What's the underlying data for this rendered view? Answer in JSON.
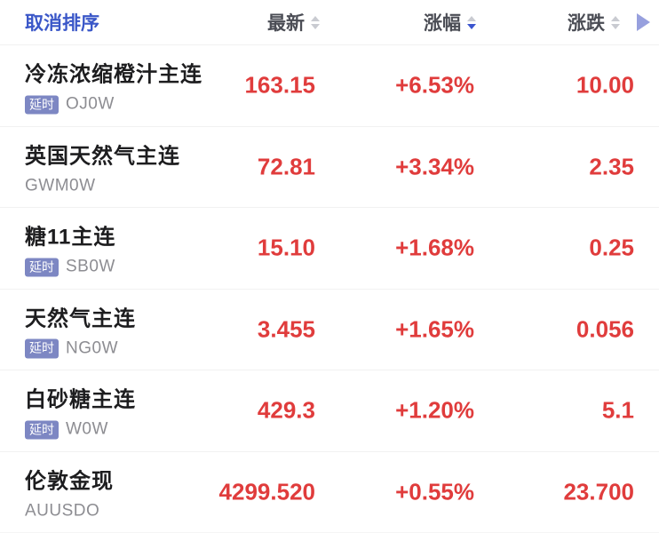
{
  "header": {
    "cancel_sort_label": "取消排序",
    "columns": [
      {
        "label": "最新",
        "sort_state": "none"
      },
      {
        "label": "涨幅",
        "sort_state": "desc"
      },
      {
        "label": "涨跌",
        "sort_state": "none"
      }
    ]
  },
  "rows": [
    {
      "name": "冷冻浓缩橙汁主连",
      "delayed_badge": "延时",
      "code": "OJ0W",
      "last": "163.15",
      "change_pct": "+6.53%",
      "change": "10.00"
    },
    {
      "name": "英国天然气主连",
      "delayed_badge": "",
      "code": "GWM0W",
      "last": "72.81",
      "change_pct": "+3.34%",
      "change": "2.35"
    },
    {
      "name": "糖11主连",
      "delayed_badge": "延时",
      "code": "SB0W",
      "last": "15.10",
      "change_pct": "+1.68%",
      "change": "0.25"
    },
    {
      "name": "天然气主连",
      "delayed_badge": "延时",
      "code": "NG0W",
      "last": "3.455",
      "change_pct": "+1.65%",
      "change": "0.056"
    },
    {
      "name": "白砂糖主连",
      "delayed_badge": "延时",
      "code": "W0W",
      "last": "429.3",
      "change_pct": "+1.20%",
      "change": "5.1"
    },
    {
      "name": "伦敦金现",
      "delayed_badge": "",
      "code": "AUUSDO",
      "last": "4299.520",
      "change_pct": "+0.55%",
      "change": "23.700"
    }
  ],
  "icons": {
    "sort-arrows-icon": "stacked ▲▼ triangles",
    "expand-columns-icon": "▶ right triangle"
  },
  "colors": {
    "up_red": "#e03c3c",
    "link_blue": "#3a57c8",
    "sort_active": "#3b55cf",
    "badge_bg": "#7d87c3",
    "more_blue": "#97a0de"
  }
}
